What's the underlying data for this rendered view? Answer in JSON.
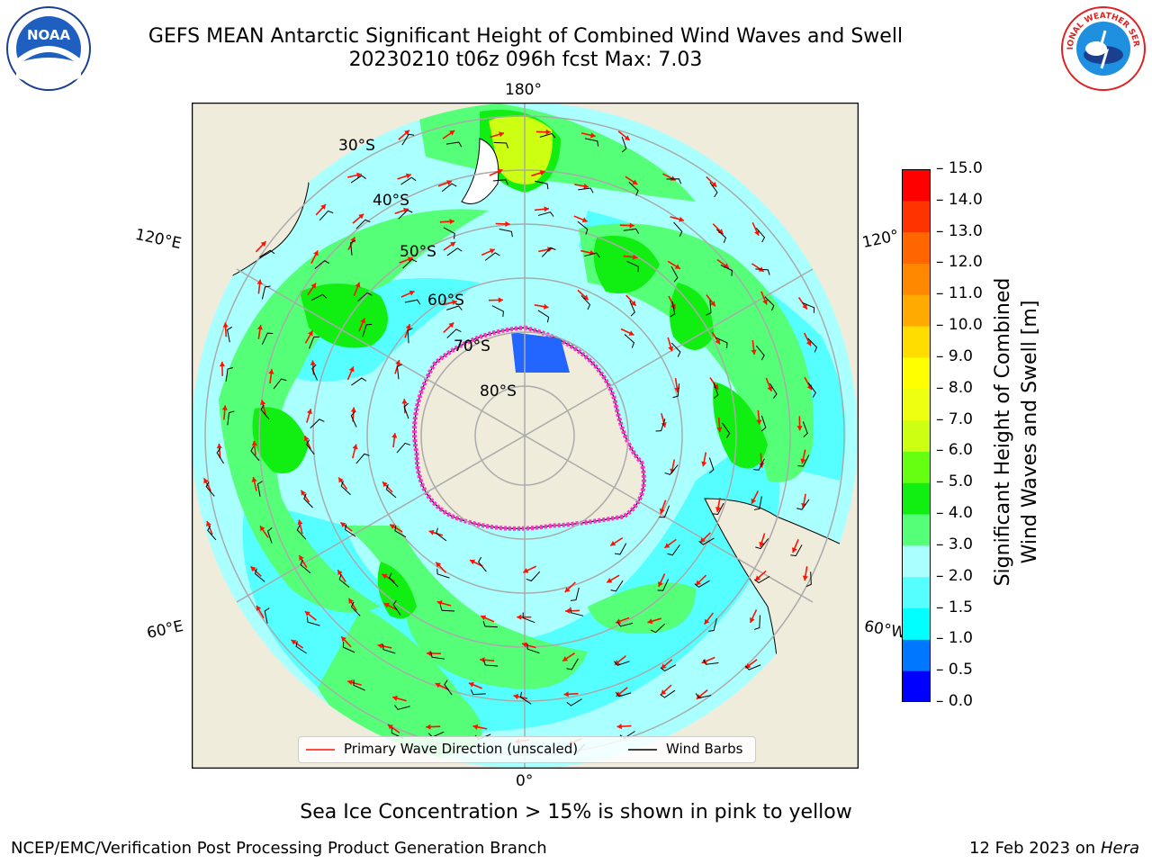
{
  "title": {
    "line1": "GEFS MEAN Antarctic Significant Height of Combined Wind Waves and Swell",
    "line2": "20230210 t06z 096h fcst   Max: 7.03"
  },
  "logos": {
    "left": "NOAA",
    "right": "NATIONAL WEATHER SERVICE"
  },
  "map": {
    "lon_labels": [
      "180°",
      "120°E",
      "120°",
      "60°E",
      "60°W",
      "0°"
    ],
    "lat_labels": [
      "30°S",
      "40°S",
      "50°S",
      "60°S",
      "70°S",
      "80°S"
    ],
    "colors": {
      "land": "#efecdc",
      "ocean_low": "#aaffff",
      "ocean_mid": "#55ffff",
      "green_light": "#55ff77",
      "green": "#11ee11",
      "yellow_green": "#ccff11",
      "ice_pink": "#ff33cc",
      "ice_blue": "#2266ff",
      "arrow_red": "#ff1100"
    },
    "legend": {
      "primary": "Primary Wave Direction (unscaled)",
      "barbs": "Wind Barbs"
    }
  },
  "colorbar": {
    "label_line1": "Significant Height of Combined",
    "label_line2": "Wind Waves and Swell [m]",
    "ticks": [
      "0.0",
      "0.5",
      "1.0",
      "1.5",
      "2.0",
      "3.0",
      "4.0",
      "5.0",
      "6.0",
      "7.0",
      "8.0",
      "9.0",
      "10.0",
      "11.0",
      "12.0",
      "13.0",
      "14.0",
      "15.0"
    ],
    "colors": [
      "#0000ff",
      "#0077ff",
      "#00ffff",
      "#55ffff",
      "#aaffff",
      "#55ff77",
      "#11ee11",
      "#66ff11",
      "#ccff11",
      "#eeff11",
      "#ffff00",
      "#ffdd00",
      "#ffaa00",
      "#ff8800",
      "#ff6600",
      "#ff3300",
      "#ff0000"
    ]
  },
  "footer": {
    "note": "Sea Ice Concentration > 15% is shown in pink to yellow",
    "left": "NCEP/EMC/Verification Post Processing Product Generation Branch",
    "right_date": "12 Feb 2023 on",
    "right_host": "Hera"
  }
}
